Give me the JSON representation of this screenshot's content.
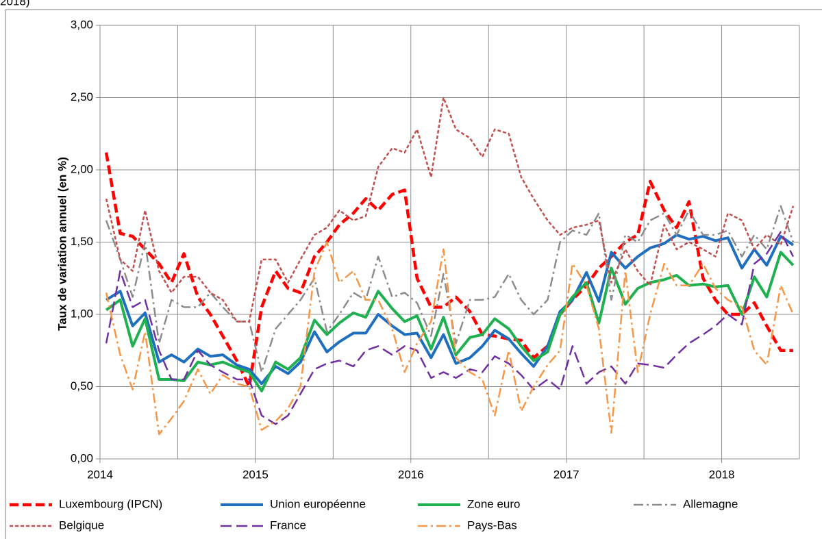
{
  "chart_data": {
    "type": "line",
    "title": "2018)",
    "y_label": "Taux de variation annuel (en %)",
    "xlim": [
      2014,
      2018.5
    ],
    "xticks": [
      2014,
      2015,
      2016,
      2017,
      2018
    ],
    "xgrid": [
      2014,
      2014.5,
      2015,
      2015.5,
      2016,
      2016.5,
      2017,
      2017.5,
      2018,
      2018.5
    ],
    "ylim": [
      0,
      3
    ],
    "yticks": [
      {
        "value": 0,
        "label": "0,00"
      },
      {
        "value": 0.5,
        "label": "0,50"
      },
      {
        "value": 1,
        "label": "1,00"
      },
      {
        "value": 1.5,
        "label": "1,50"
      },
      {
        "value": 2,
        "label": "2,00"
      },
      {
        "value": 2.5,
        "label": "2,50"
      },
      {
        "value": 3,
        "label": "3,00"
      }
    ],
    "grid": true,
    "legend": "bottom",
    "x": [
      2014.04,
      2014.13,
      2014.21,
      2014.29,
      2014.38,
      2014.46,
      2014.54,
      2014.63,
      2014.71,
      2014.79,
      2014.88,
      2014.96,
      2015.04,
      2015.13,
      2015.21,
      2015.29,
      2015.38,
      2015.46,
      2015.54,
      2015.63,
      2015.71,
      2015.79,
      2015.88,
      2015.96,
      2016.04,
      2016.13,
      2016.21,
      2016.29,
      2016.38,
      2016.46,
      2016.54,
      2016.63,
      2016.71,
      2016.79,
      2016.88,
      2016.96,
      2017.04,
      2017.13,
      2017.21,
      2017.29,
      2017.38,
      2017.46,
      2017.54,
      2017.63,
      2017.71,
      2017.79,
      2017.88,
      2017.96,
      2018.04,
      2018.13,
      2018.21,
      2018.29,
      2018.38,
      2018.46
    ],
    "series": [
      {
        "name": "Luxembourg (IPCN)",
        "color": "#ff0000",
        "style": "dashed",
        "width": 4.5,
        "values": [
          2.12,
          1.56,
          1.54,
          1.45,
          1.35,
          1.22,
          1.42,
          1.12,
          1.0,
          0.85,
          0.68,
          0.5,
          1.05,
          1.3,
          1.18,
          1.15,
          1.4,
          1.5,
          1.62,
          1.7,
          1.8,
          1.72,
          1.83,
          1.86,
          1.25,
          1.05,
          1.05,
          1.12,
          1.02,
          0.86,
          0.85,
          0.83,
          0.82,
          0.7,
          0.78,
          1.0,
          1.1,
          1.2,
          1.32,
          1.4,
          1.5,
          1.55,
          1.92,
          1.72,
          1.6,
          1.78,
          1.25,
          1.1,
          1.0,
          1.0,
          1.08,
          0.92,
          0.75,
          0.75
        ]
      },
      {
        "name": "Union européenne",
        "color": "#1f6fc0",
        "style": "solid",
        "width": 4,
        "values": [
          1.1,
          1.16,
          0.92,
          1.01,
          0.67,
          0.72,
          0.67,
          0.76,
          0.71,
          0.72,
          0.65,
          0.62,
          0.52,
          0.64,
          0.59,
          0.67,
          0.88,
          0.74,
          0.81,
          0.87,
          0.87,
          1.0,
          0.92,
          0.86,
          0.87,
          0.7,
          0.86,
          0.66,
          0.7,
          0.78,
          0.89,
          0.83,
          0.73,
          0.64,
          0.78,
          1.02,
          1.1,
          1.29,
          1.09,
          1.43,
          1.32,
          1.4,
          1.46,
          1.49,
          1.55,
          1.52,
          1.54,
          1.51,
          1.53,
          1.32,
          1.45,
          1.34,
          1.54,
          1.48
        ]
      },
      {
        "name": "Zone euro",
        "color": "#1fb050",
        "style": "solid",
        "width": 4,
        "values": [
          1.03,
          1.1,
          0.78,
          0.97,
          0.55,
          0.55,
          0.54,
          0.67,
          0.65,
          0.67,
          0.63,
          0.6,
          0.47,
          0.67,
          0.62,
          0.7,
          0.96,
          0.86,
          0.94,
          1.01,
          0.98,
          1.16,
          1.04,
          0.95,
          0.99,
          0.76,
          0.98,
          0.72,
          0.84,
          0.86,
          0.97,
          0.9,
          0.78,
          0.68,
          0.74,
          1.0,
          1.12,
          1.22,
          0.94,
          1.32,
          1.07,
          1.18,
          1.22,
          1.24,
          1.27,
          1.2,
          1.21,
          1.19,
          1.2,
          1.0,
          1.26,
          1.12,
          1.43,
          1.34
        ]
      },
      {
        "name": "Allemagne",
        "color": "#8c8c8c",
        "style": "dashdot",
        "width": 2.5,
        "values": [
          1.65,
          1.38,
          1.12,
          1.5,
          0.8,
          1.1,
          1.05,
          1.05,
          1.15,
          1.05,
          0.95,
          0.95,
          0.6,
          0.9,
          1.0,
          1.1,
          1.25,
          0.88,
          1.0,
          1.15,
          1.1,
          1.4,
          1.12,
          1.15,
          1.08,
          0.85,
          1.28,
          0.8,
          1.1,
          1.1,
          1.12,
          1.28,
          1.1,
          1.0,
          1.1,
          1.5,
          1.58,
          1.55,
          1.7,
          1.1,
          1.55,
          1.5,
          1.65,
          1.7,
          1.55,
          1.72,
          1.55,
          1.55,
          1.58,
          1.4,
          1.55,
          1.45,
          1.75,
          1.5
        ]
      },
      {
        "name": "Belgique",
        "color": "#c0504d",
        "style": "dotted",
        "width": 2.5,
        "values": [
          1.8,
          1.38,
          1.3,
          1.72,
          1.3,
          1.15,
          1.26,
          1.26,
          1.15,
          1.1,
          0.95,
          0.95,
          1.38,
          1.38,
          1.22,
          1.38,
          1.55,
          1.6,
          1.72,
          1.65,
          1.68,
          2.02,
          2.15,
          2.12,
          2.28,
          1.95,
          2.5,
          2.28,
          2.22,
          2.09,
          2.28,
          2.25,
          1.95,
          1.8,
          1.65,
          1.55,
          1.6,
          1.62,
          1.65,
          1.22,
          1.45,
          1.3,
          1.2,
          1.62,
          1.45,
          1.5,
          1.45,
          1.4,
          1.7,
          1.65,
          1.45,
          1.55,
          1.48,
          1.75
        ]
      },
      {
        "name": "France",
        "color": "#7030a0",
        "style": "longdash",
        "width": 2.5,
        "values": [
          0.8,
          1.3,
          1.05,
          1.1,
          0.75,
          0.55,
          0.55,
          0.75,
          0.65,
          0.6,
          0.55,
          0.55,
          0.3,
          0.24,
          0.3,
          0.45,
          0.62,
          0.66,
          0.68,
          0.64,
          0.75,
          0.78,
          0.72,
          0.78,
          0.75,
          0.56,
          0.6,
          0.56,
          0.62,
          0.6,
          0.71,
          0.66,
          0.58,
          0.48,
          0.55,
          0.48,
          0.78,
          0.52,
          0.6,
          0.64,
          0.52,
          0.66,
          0.65,
          0.63,
          0.72,
          0.8,
          0.86,
          0.92,
          1.0,
          0.93,
          1.35,
          1.42,
          1.57,
          1.4
        ]
      },
      {
        "name": "Pays-Bas",
        "color": "#f79646",
        "style": "dashdot",
        "width": 2.5,
        "values": [
          1.15,
          0.72,
          0.48,
          0.88,
          0.17,
          0.28,
          0.4,
          0.62,
          0.45,
          0.58,
          0.52,
          0.5,
          0.2,
          0.26,
          0.35,
          0.5,
          1.3,
          1.5,
          1.22,
          1.3,
          1.1,
          1.1,
          0.9,
          0.6,
          0.8,
          0.95,
          1.45,
          0.7,
          0.6,
          0.55,
          0.3,
          0.75,
          0.33,
          0.5,
          0.65,
          0.75,
          1.35,
          1.2,
          0.9,
          0.18,
          1.3,
          0.6,
          1.0,
          1.35,
          1.2,
          1.2,
          1.35,
          1.18,
          1.1,
          1.05,
          0.75,
          0.65,
          1.2,
          1.0
        ]
      }
    ]
  }
}
